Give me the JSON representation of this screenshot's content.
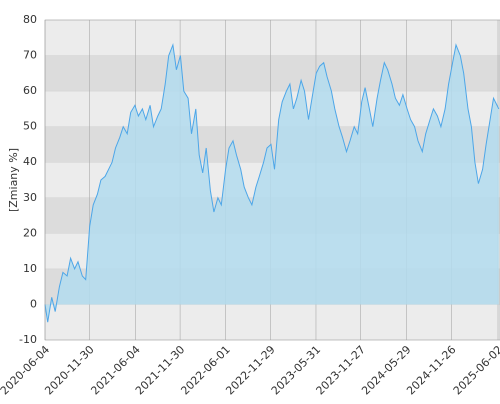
{
  "chart_data": {
    "type": "area",
    "y_label": "[Zmiany %]",
    "color": "#4da6e8",
    "fill": "#b3dcee",
    "grid": true,
    "ylim": [
      -10,
      80
    ],
    "yticks": [
      -10,
      0,
      10,
      20,
      30,
      40,
      50,
      60,
      70,
      80
    ],
    "xlim": [
      "2020-06-04",
      "2025-06-10"
    ],
    "xticks": [
      "2020-06-04",
      "2020-11-30",
      "2021-06-04",
      "2021-11-30",
      "2022-06-01",
      "2022-11-29",
      "2023-05-31",
      "2023-11-27",
      "2024-05-29",
      "2024-11-26",
      "2025-06-02"
    ],
    "x": [
      "2020-06-04",
      "2020-06-15",
      "2020-07-01",
      "2020-07-15",
      "2020-08-01",
      "2020-08-15",
      "2020-09-01",
      "2020-09-15",
      "2020-10-01",
      "2020-10-15",
      "2020-11-01",
      "2020-11-15",
      "2020-12-01",
      "2020-12-15",
      "2021-01-01",
      "2021-01-15",
      "2021-02-01",
      "2021-02-15",
      "2021-03-01",
      "2021-03-15",
      "2021-04-01",
      "2021-04-15",
      "2021-05-01",
      "2021-05-15",
      "2021-06-01",
      "2021-06-15",
      "2021-07-01",
      "2021-07-15",
      "2021-08-01",
      "2021-08-15",
      "2021-09-01",
      "2021-09-15",
      "2021-10-01",
      "2021-10-15",
      "2021-11-01",
      "2021-11-15",
      "2021-12-01",
      "2021-12-15",
      "2022-01-01",
      "2022-01-15",
      "2022-02-01",
      "2022-02-15",
      "2022-03-01",
      "2022-03-15",
      "2022-04-01",
      "2022-04-15",
      "2022-05-01",
      "2022-05-15",
      "2022-06-01",
      "2022-06-15",
      "2022-07-01",
      "2022-07-15",
      "2022-08-01",
      "2022-08-15",
      "2022-09-01",
      "2022-09-15",
      "2022-10-01",
      "2022-10-15",
      "2022-11-01",
      "2022-11-15",
      "2022-12-01",
      "2022-12-15",
      "2023-01-01",
      "2023-01-15",
      "2023-02-01",
      "2023-02-15",
      "2023-03-01",
      "2023-03-15",
      "2023-04-01",
      "2023-04-15",
      "2023-05-01",
      "2023-05-15",
      "2023-06-01",
      "2023-06-15",
      "2023-07-01",
      "2023-07-15",
      "2023-08-01",
      "2023-08-15",
      "2023-09-01",
      "2023-09-15",
      "2023-10-01",
      "2023-10-15",
      "2023-11-01",
      "2023-11-15",
      "2023-12-01",
      "2023-12-15",
      "2024-01-01",
      "2024-01-15",
      "2024-02-01",
      "2024-02-15",
      "2024-03-01",
      "2024-03-15",
      "2024-04-01",
      "2024-04-15",
      "2024-05-01",
      "2024-05-15",
      "2024-06-01",
      "2024-06-15",
      "2024-07-01",
      "2024-07-15",
      "2024-08-01",
      "2024-08-15",
      "2024-09-01",
      "2024-09-15",
      "2024-10-01",
      "2024-10-15",
      "2024-11-01",
      "2024-11-15",
      "2024-12-01",
      "2024-12-15",
      "2025-01-01",
      "2025-01-15",
      "2025-02-01",
      "2025-02-15",
      "2025-03-01",
      "2025-03-15",
      "2025-04-01",
      "2025-04-15",
      "2025-05-01",
      "2025-05-15",
      "2025-06-05"
    ],
    "values": [
      0,
      -5,
      2,
      -2,
      5,
      9,
      8,
      13,
      10,
      12,
      8,
      7,
      22,
      28,
      31,
      35,
      36,
      38,
      40,
      44,
      47,
      50,
      48,
      54,
      56,
      53,
      55,
      52,
      56,
      50,
      53,
      55,
      62,
      70,
      73,
      66,
      70,
      60,
      58,
      48,
      55,
      42,
      37,
      44,
      32,
      26,
      30,
      28,
      38,
      44,
      46,
      42,
      38,
      33,
      30,
      28,
      33,
      36,
      40,
      44,
      45,
      38,
      52,
      57,
      60,
      62,
      55,
      58,
      63,
      60,
      52,
      58,
      65,
      67,
      68,
      64,
      60,
      55,
      50,
      47,
      43,
      46,
      50,
      48,
      57,
      61,
      55,
      50,
      58,
      63,
      68,
      66,
      62,
      58,
      56,
      59,
      55,
      52,
      50,
      46,
      43,
      48,
      52,
      55,
      53,
      50,
      55,
      62,
      68,
      73,
      70,
      65,
      55,
      50,
      40,
      34,
      38,
      45,
      52,
      58,
      55
    ]
  }
}
